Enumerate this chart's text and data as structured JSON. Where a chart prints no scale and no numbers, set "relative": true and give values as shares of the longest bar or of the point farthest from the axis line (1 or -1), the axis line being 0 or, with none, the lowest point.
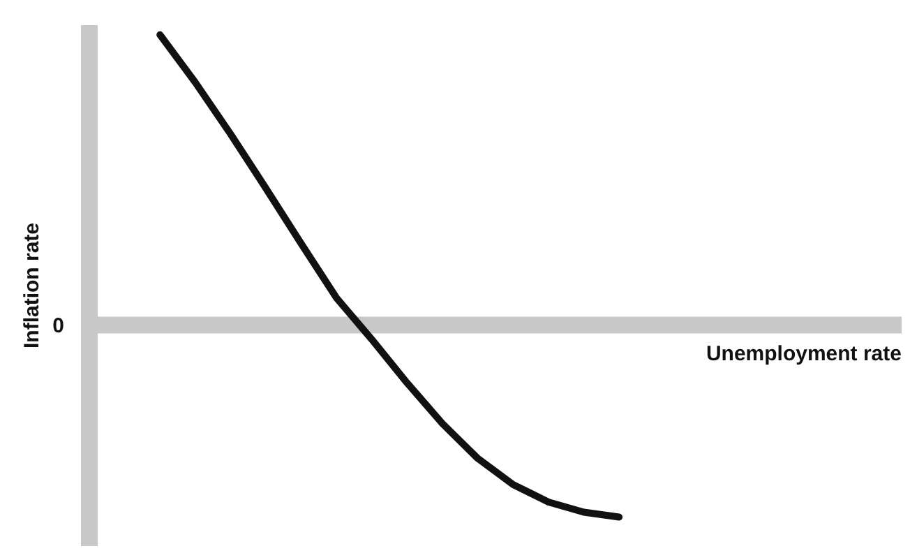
{
  "chart_data": {
    "type": "line",
    "relative": true,
    "xlabel": "Unemployment rate",
    "ylabel": "Inflation rate",
    "categories": [
      null,
      null,
      null,
      null,
      null,
      null,
      null,
      null,
      null,
      null,
      null,
      null,
      null,
      null,
      null,
      null,
      null,
      null,
      null,
      null,
      null,
      null,
      null,
      null
    ],
    "series": [
      {
        "color": "#111111",
        "values": [
          null,
          null,
          1,
          0.836,
          0.658,
          0.471,
          0.28,
          0.093,
          -0.05,
          -0.2,
          -0.34,
          -0.46,
          -0.55,
          -0.61,
          -0.645,
          -0.662,
          null,
          null,
          null,
          null,
          null,
          null,
          null,
          null
        ]
      }
    ],
    "ref_lines": [
      {
        "axis": "y",
        "value": 0,
        "label": "0",
        "color": "#c8c8c8"
      }
    ],
    "marker": "none",
    "line_style": "solid",
    "grid": false,
    "legend": false
  }
}
